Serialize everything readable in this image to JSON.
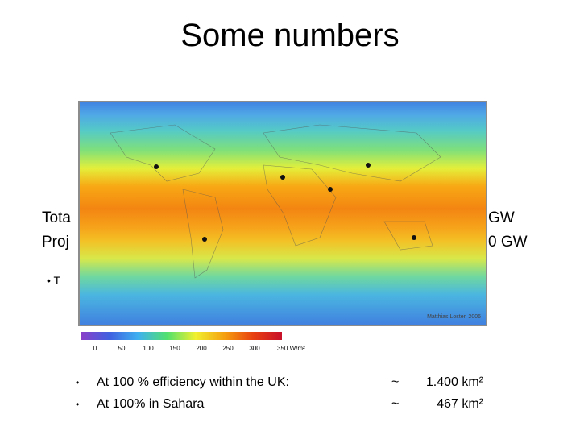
{
  "title": "Some numbers",
  "obscured_lines": [
    {
      "left": "Tota",
      "right": "GW"
    },
    {
      "left": "Proj",
      "right": "0 GW"
    }
  ],
  "obscured_bullet": "T",
  "map": {
    "credit": "Matthias Loster, 2006",
    "colorbar_ticks": [
      "0",
      "50",
      "100",
      "150",
      "200",
      "250",
      "300",
      "350 W/m²"
    ]
  },
  "bullets": [
    {
      "text": "At 100 % efficiency within the UK:",
      "approx": "~",
      "area": "1.400 km²"
    },
    {
      "text": "At 100% in Sahara",
      "approx": "~",
      "area": "467 km²"
    }
  ]
}
